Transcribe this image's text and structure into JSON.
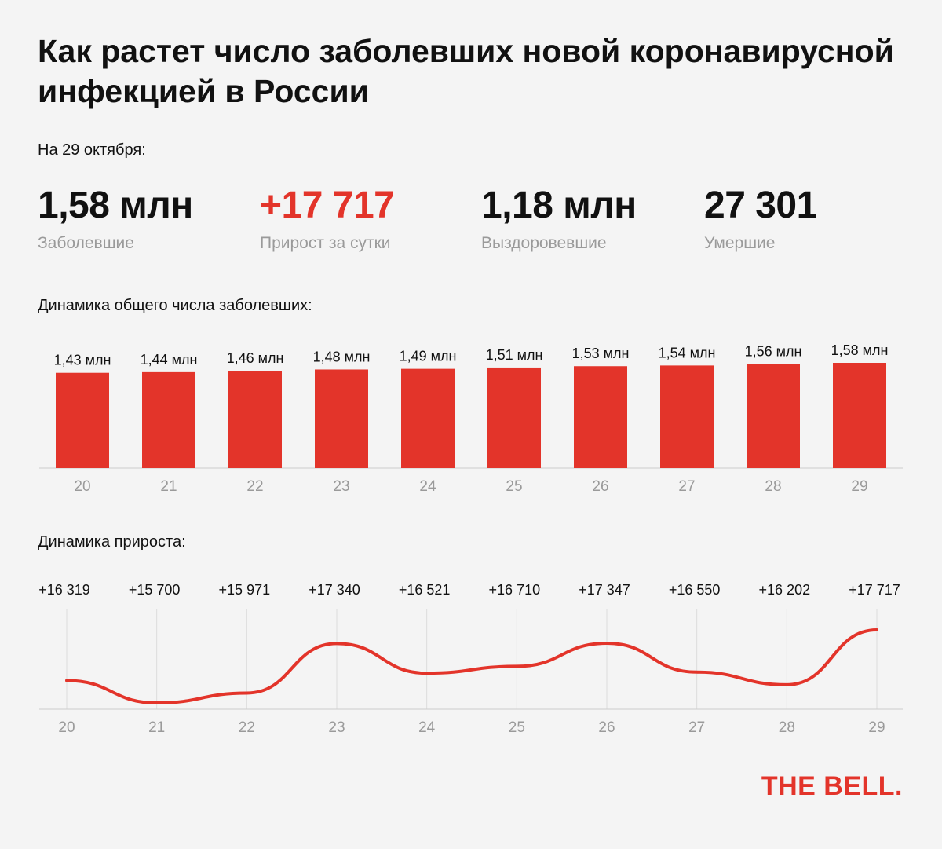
{
  "title": "Как растет число заболевших новой коронавирусной инфекцией в России",
  "as_of": "На 29 октября:",
  "stats": [
    {
      "value": "1,58 млн",
      "label": "Заболевшие"
    },
    {
      "value": "+17 717",
      "label": "Прирост за сутки"
    },
    {
      "value": "1,18 млн",
      "label": "Выздоровевшие"
    },
    {
      "value": "27 301",
      "label": "Умершие"
    }
  ],
  "colors": {
    "accent": "#e3342a",
    "muted": "#9a9a9a",
    "grid": "#cccccc"
  },
  "logo": "THE BELL.",
  "chart_data": [
    {
      "type": "bar",
      "title": "Динамика общего числа заболевших:",
      "categories": [
        "20",
        "21",
        "22",
        "23",
        "24",
        "25",
        "26",
        "27",
        "28",
        "29"
      ],
      "values": [
        1.43,
        1.44,
        1.46,
        1.48,
        1.49,
        1.51,
        1.53,
        1.54,
        1.56,
        1.58
      ],
      "data_labels": [
        "1,43 млн",
        "1,44 млн",
        "1,46 млн",
        "1,48 млн",
        "1,49 млн",
        "1,51 млн",
        "1,53 млн",
        "1,54 млн",
        "1,56 млн",
        "1,58 млн"
      ],
      "ylim": [
        0,
        1.58
      ],
      "grid": false
    },
    {
      "type": "line",
      "title": "Динамика прироста:",
      "categories": [
        "20",
        "21",
        "22",
        "23",
        "24",
        "25",
        "26",
        "27",
        "28",
        "29"
      ],
      "values": [
        16319,
        15700,
        15971,
        17340,
        16521,
        16710,
        17347,
        16550,
        16202,
        17717
      ],
      "data_labels": [
        "+16 319",
        "+15 700",
        "+15 971",
        "+17 340",
        "+16 521",
        "+16 710",
        "+17 347",
        "+16 550",
        "+16 202",
        "+17 717"
      ],
      "grid": true
    }
  ]
}
